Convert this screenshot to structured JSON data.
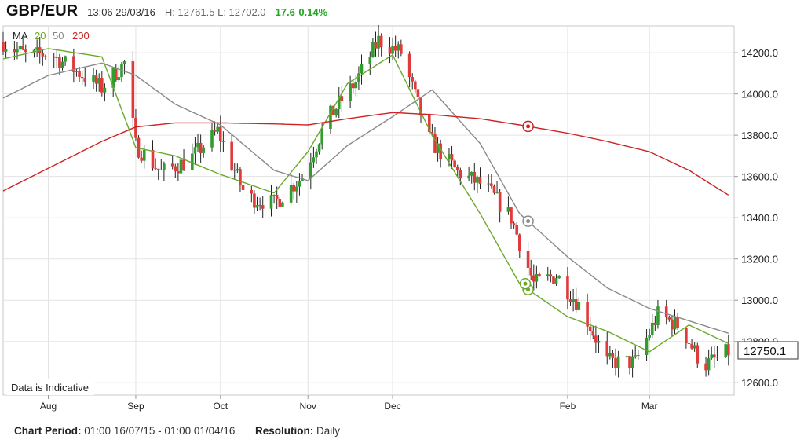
{
  "header": {
    "symbol": "GBP/EUR",
    "timestamp": "13:06 29/03/16",
    "high_low": "H: 12761.5  L: 12702.0",
    "change": "17.6",
    "change_pct": "0.14%"
  },
  "legend": {
    "label": "MA",
    "ma20": "20",
    "ma50": "50",
    "ma200": "200"
  },
  "note": "Data is Indicative",
  "last_price_label": "12750.1",
  "footer": {
    "period_label": "Chart Period:",
    "period_value": "01:00 16/07/15 - 01:00 01/04/16",
    "resolution_label": "Resolution:",
    "resolution_value": "Daily"
  },
  "colors": {
    "up": "#2f9e2f",
    "down": "#e03a3a",
    "ma20": "#6aa82a",
    "ma50": "#8a8a8a",
    "ma200": "#cc2222",
    "grid": "#e3e3e3"
  },
  "chart_data": {
    "type": "candlestick",
    "y_ticks": [
      "12600.0",
      "12800.0",
      "13000.0",
      "13200.0",
      "13400.0",
      "13600.0",
      "13800.0",
      "14000.0",
      "14200.0"
    ],
    "x_ticks": [
      "Aug",
      "Sep",
      "Oct",
      "Nov",
      "Dec",
      "Feb",
      "Mar"
    ],
    "ylim": [
      12540,
      14330
    ],
    "grid": true,
    "series": [
      {
        "name": "20",
        "kind": "ma",
        "x": [
          "2015-07-16",
          "2015-08-01",
          "2015-08-20",
          "2015-09-01",
          "2015-09-15",
          "2015-10-01",
          "2015-10-20",
          "2015-11-01",
          "2015-11-15",
          "2015-12-01",
          "2015-12-15",
          "2016-01-01",
          "2016-01-15",
          "2016-02-01",
          "2016-02-15",
          "2016-03-01",
          "2016-03-15",
          "2016-03-29"
        ],
        "values": [
          14170,
          14220,
          14180,
          13740,
          13700,
          13610,
          13520,
          13720,
          14050,
          14190,
          13800,
          13420,
          13080,
          12920,
          12850,
          12750,
          12880,
          12790
        ]
      },
      {
        "name": "50",
        "kind": "ma",
        "x": [
          "2015-07-16",
          "2015-08-01",
          "2015-08-20",
          "2015-09-01",
          "2015-09-15",
          "2015-10-01",
          "2015-10-20",
          "2015-11-01",
          "2015-11-15",
          "2015-12-01",
          "2015-12-15",
          "2016-01-01",
          "2016-01-15",
          "2016-02-01",
          "2016-02-15",
          "2016-03-01",
          "2016-03-15",
          "2016-03-29"
        ],
        "values": [
          13980,
          14090,
          14150,
          14090,
          13950,
          13850,
          13630,
          13580,
          13750,
          13890,
          14020,
          13760,
          13420,
          13210,
          13060,
          12960,
          12900,
          12840
        ]
      },
      {
        "name": "200",
        "kind": "ma",
        "x": [
          "2015-07-16",
          "2015-08-01",
          "2015-08-20",
          "2015-09-01",
          "2015-09-15",
          "2015-10-01",
          "2015-10-20",
          "2015-11-01",
          "2015-11-15",
          "2015-12-01",
          "2015-12-15",
          "2016-01-01",
          "2016-01-15",
          "2016-02-01",
          "2016-02-15",
          "2016-03-01",
          "2016-03-15",
          "2016-03-29"
        ],
        "values": [
          13530,
          13640,
          13770,
          13840,
          13860,
          13860,
          13855,
          13850,
          13880,
          13910,
          13900,
          13880,
          13850,
          13810,
          13770,
          13720,
          13630,
          13510
        ]
      },
      {
        "name": "",
        "kind": "close",
        "x": [
          "2015-07-16",
          "2015-07-25",
          "2015-08-01",
          "2015-08-10",
          "2015-08-20",
          "2015-08-28",
          "2015-09-01",
          "2015-09-10",
          "2015-09-20",
          "2015-09-30",
          "2015-10-10",
          "2015-10-20",
          "2015-10-30",
          "2015-11-08",
          "2015-11-18",
          "2015-11-26",
          "2015-12-04",
          "2015-12-14",
          "2015-12-24",
          "2016-01-03",
          "2016-01-12",
          "2016-01-20",
          "2016-01-28",
          "2016-02-06",
          "2016-02-15",
          "2016-02-25",
          "2016-03-04",
          "2016-03-12",
          "2016-03-20",
          "2016-03-29"
        ],
        "values": [
          14250,
          14180,
          14200,
          14120,
          14030,
          14150,
          13750,
          13620,
          13680,
          13820,
          13500,
          13470,
          13600,
          13880,
          14060,
          14260,
          14200,
          13780,
          13620,
          13550,
          13400,
          13080,
          13120,
          12960,
          12700,
          12700,
          12930,
          12870,
          12680,
          12750
        ]
      }
    ]
  }
}
